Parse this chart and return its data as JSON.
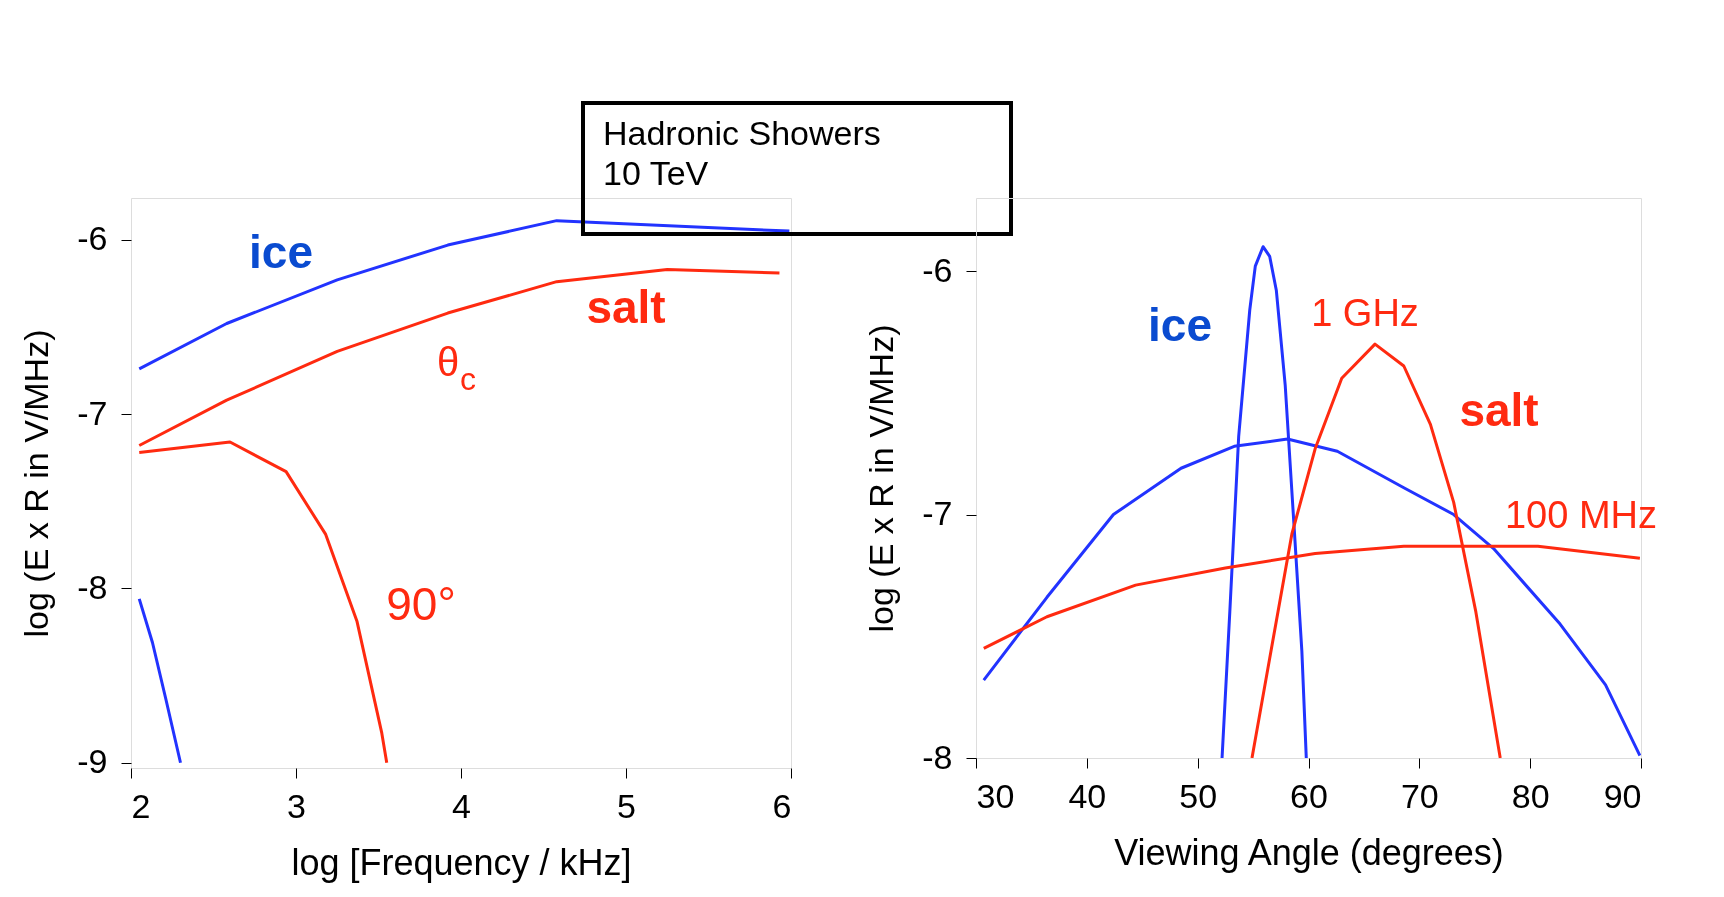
{
  "chart_data": [
    {
      "type": "line",
      "xlabel": "log [Frequency / kHz]",
      "ylabel": "log (E x R in V/MHz)",
      "xlim": [
        2,
        6
      ],
      "xticks": [
        2,
        3,
        4,
        5,
        6
      ],
      "ylim": [
        -9.03,
        -5.76
      ],
      "yticks": [
        -9,
        -8,
        -7,
        -6
      ],
      "grid": false,
      "series": [
        {
          "color": "#2233ff",
          "x": [
            2.05,
            2.58,
            3.25,
            3.92,
            4.58,
            5.99
          ],
          "values": [
            -6.74,
            -6.48,
            -6.23,
            -6.03,
            -5.89,
            -5.95
          ]
        },
        {
          "color": "#ff2a10",
          "x": [
            2.05,
            2.58,
            3.25,
            3.92,
            4.58,
            5.25,
            5.93
          ],
          "values": [
            -7.18,
            -6.92,
            -6.64,
            -6.42,
            -6.24,
            -6.17,
            -6.19
          ]
        },
        {
          "color": "#ff2a10",
          "x": [
            2.05,
            2.6,
            2.94,
            3.18,
            3.37,
            3.52,
            3.55
          ],
          "values": [
            -7.22,
            -7.16,
            -7.33,
            -7.69,
            -8.19,
            -8.83,
            -9.0
          ]
        },
        {
          "color": "#2233ff",
          "x": [
            2.05,
            2.13,
            2.21,
            2.3
          ],
          "values": [
            -8.06,
            -8.31,
            -8.63,
            -9.0
          ]
        }
      ],
      "annotations": [
        "ice",
        "salt",
        "θ$_{c}$",
        "90°",
        "Hadronic Showers\n10 TeV"
      ]
    },
    {
      "type": "line",
      "xlabel": "Viewing Angle (degrees)",
      "ylabel": "log (E x R in V/MHz)",
      "xlim": [
        30,
        90
      ],
      "xticks": [
        30,
        40,
        50,
        60,
        70,
        80,
        90
      ],
      "ylim": [
        -8,
        -5.7
      ],
      "yticks": [
        -8,
        -7,
        -6
      ],
      "grid": false,
      "series": [
        {
          "color": "#2233ff",
          "x": [
            52.2,
            52.9,
            53.7,
            54.7,
            55.2,
            55.9,
            56.5,
            57.1,
            57.9,
            58.7,
            59.4,
            59.8
          ],
          "values": [
            -8.0,
            -7.4,
            -6.68,
            -6.16,
            -5.98,
            -5.9,
            -5.94,
            -6.08,
            -6.47,
            -7.05,
            -7.56,
            -8.0
          ]
        },
        {
          "color": "#2233ff",
          "x": [
            30.7,
            36.4,
            42.4,
            48.5,
            53.3,
            58.1,
            62.6,
            68.6,
            73.1,
            76.7,
            82.7,
            86.8,
            89.9
          ],
          "values": [
            -7.68,
            -7.34,
            -7.0,
            -6.81,
            -6.72,
            -6.69,
            -6.74,
            -6.89,
            -7.0,
            -7.14,
            -7.45,
            -7.7,
            -7.99
          ]
        },
        {
          "color": "#ff2a10",
          "x": [
            54.9,
            56.5,
            58.5,
            60.6,
            63.0,
            66.0,
            68.6,
            71.0,
            73.1,
            75.1,
            77.3
          ],
          "values": [
            -8.0,
            -7.59,
            -7.08,
            -6.73,
            -6.44,
            -6.3,
            -6.39,
            -6.63,
            -6.95,
            -7.4,
            -8.0
          ]
        },
        {
          "color": "#ff2a10",
          "x": [
            30.7,
            36.4,
            44.4,
            52.5,
            60.6,
            68.6,
            72.7,
            80.7,
            89.9
          ],
          "values": [
            -7.55,
            -7.42,
            -7.29,
            -7.22,
            -7.16,
            -7.13,
            -7.13,
            -7.13,
            -7.18
          ]
        }
      ],
      "annotations": [
        "ice",
        "1 GHz",
        "salt",
        "100 MHz"
      ]
    }
  ]
}
